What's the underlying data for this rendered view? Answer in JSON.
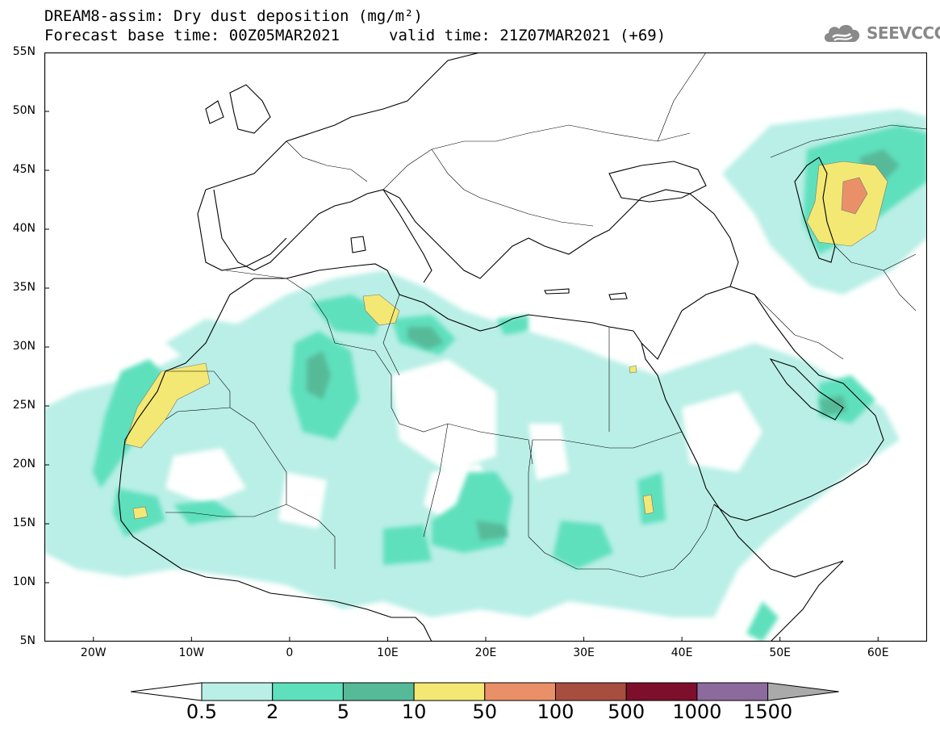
{
  "title": {
    "line1": "DREAM8-assim: Dry dust deposition (mg/m²)",
    "line2_left": "Forecast base time: 00Z05MAR2021",
    "line2_right": "valid time: 21Z07MAR2021 (+69)"
  },
  "logo": {
    "text": "SEEVCCC",
    "icon": "cloud-icon"
  },
  "map": {
    "lon_range": [
      -25,
      65
    ],
    "lat_range": [
      5,
      55
    ],
    "y_ticks": [
      "55N",
      "50N",
      "45N",
      "40N",
      "35N",
      "30N",
      "25N",
      "20N",
      "15N",
      "10N",
      "5N"
    ],
    "x_ticks": [
      "20W",
      "10W",
      "0",
      "10E",
      "20E",
      "30E",
      "40E",
      "50E",
      "60E"
    ]
  },
  "legend": {
    "labels": [
      "0.5",
      "2",
      "5",
      "10",
      "50",
      "100",
      "500",
      "1000",
      "1500"
    ],
    "colors": [
      "#ffffff",
      "#b9efe6",
      "#5fe0bd",
      "#56ba99",
      "#f3e874",
      "#ea9068",
      "#a84e40",
      "#7d0f2a",
      "#8d6a9d",
      "#aaaaaa"
    ]
  }
}
